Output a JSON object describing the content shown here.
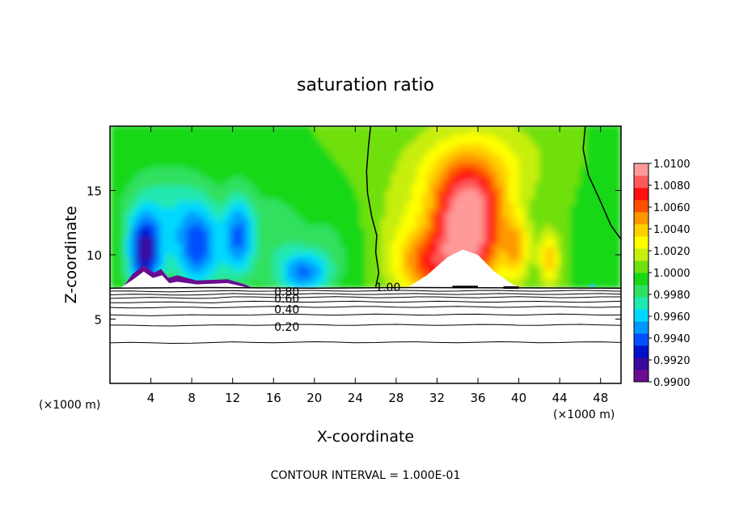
{
  "chart_data": {
    "type": "heatmap",
    "title": "saturation ratio",
    "xlabel": "X-coordinate",
    "ylabel": "Z-coordinate",
    "x_unit_left": "(×1000 m)",
    "x_unit_right": "(×1000 m)",
    "xlim": [
      0,
      50
    ],
    "ylim": [
      0,
      20
    ],
    "x_ticks": [
      4,
      8,
      12,
      16,
      20,
      24,
      28,
      32,
      36,
      40,
      44,
      48
    ],
    "x_tick_labels": [
      "4",
      "8",
      "12",
      "16",
      "20",
      "24",
      "28",
      "32",
      "36",
      "40",
      "44",
      "48"
    ],
    "y_ticks": [
      5,
      10,
      15
    ],
    "y_tick_labels": [
      "5",
      "10",
      "15"
    ],
    "colorbar": {
      "min": 0.99,
      "max": 1.01,
      "labels": [
        "1.0100",
        "1.0080",
        "1.0060",
        "1.0040",
        "1.0020",
        "1.0000",
        "0.9980",
        "0.9960",
        "0.9940",
        "0.9920",
        "0.9900"
      ],
      "colors": [
        "#6a0d91",
        "#3a0a9e",
        "#0010c8",
        "#0050ff",
        "#0098ff",
        "#00d8ff",
        "#20e8b0",
        "#30e060",
        "#18d818",
        "#70e010",
        "#c8ee10",
        "#ffff00",
        "#ffd000",
        "#ff9800",
        "#ff5000",
        "#ff1010",
        "#ff5a5a",
        "#ff9a9a"
      ]
    },
    "contour_labels": [
      {
        "text": "1.00",
        "x": 27.2,
        "z": 7.5
      },
      {
        "text": "0.80",
        "x": 17.3,
        "z": 7.15
      },
      {
        "text": "0.60",
        "x": 17.3,
        "z": 6.6
      },
      {
        "text": "0.40",
        "x": 17.3,
        "z": 5.75
      },
      {
        "text": "0.20",
        "x": 17.3,
        "z": 4.4
      }
    ],
    "contour_interval_text": "CONTOUR INTERVAL = 1.000E-01",
    "cloud_base_z": 7.4
  }
}
